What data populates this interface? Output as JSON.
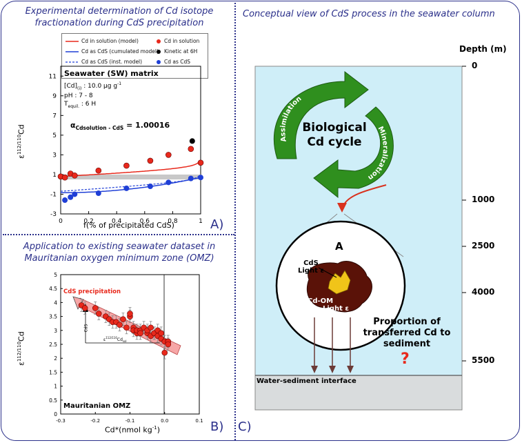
{
  "panel_a": {
    "title_line1": "Experimental determination of Cd isotope",
    "title_line2": "fractionation during CdS precipitation",
    "label": "A)",
    "legend": {
      "model_solution": "Cd in solution (model)",
      "model_cumulated": "Cd as CdS (cumulated model)",
      "model_inst": "Cd as CdS (inst. model)",
      "pt_solution": "Cd in solution",
      "pt_kinetic": "Kinetic at 6H",
      "pt_cds": "Cd as CdS"
    },
    "matrix_title": "Seawater (SW) matrix",
    "cond1": "[Cd]",
    "cond1_sub": "(i)",
    "cond1_val": " : 10.0 µg g",
    "cond1_sup": "-1",
    "cond2": "pH : 7 - 8",
    "cond3": "T",
    "cond3_sub": "equil.",
    "cond3_val": " : 6 H",
    "alpha_sym": "α",
    "alpha_sub": "Cdsolution - CdS",
    "alpha_val": " = 1.00016",
    "xlabel": "f(% of precipitated CdS)",
    "ylabel_eps": "ε",
    "ylabel_sup": "112/110",
    "ylabel_cd": "Cd",
    "colors": {
      "solution": "#e8291c",
      "cds": "#1f3fd6",
      "kinetic": "#000000"
    }
  },
  "panel_b": {
    "title_line1": "Application to existing seawater dataset in",
    "title_line2": "Mauritanian oxygen minimum zone (OMZ)",
    "label": "B)",
    "annot": "CdS precipitation",
    "annot_cds": "CdS",
    "annot_eps": "ε",
    "annot_eps_sup": "112/110",
    "annot_eps_cd": "Cd",
    "annot_eps_sub": "sol",
    "corner": "Mauritanian OMZ",
    "xlabel": "Cd*(nmol kg",
    "xlabel_sup": "-1",
    "xlabel_end": ")",
    "ylabel_eps": "ε",
    "ylabel_sup": "112/110",
    "ylabel_cd": "Cd"
  },
  "panel_c": {
    "title": "Conceptual view of CdS process in the seawater column",
    "label": "C)",
    "depth_title": "Depth (m)",
    "depth_ticks": [
      "0",
      "1000",
      "2500",
      "4000",
      "5500"
    ],
    "cycle_line1": "Biological",
    "cycle_line2": "Cd cycle",
    "arrow_assim": "Assimilation",
    "arrow_miner": "Mineralization",
    "zoom_letter": "A",
    "cds_line1": "CdS",
    "cds_line2": "Light ε",
    "cdom_line1": "Cd-OM",
    "cdom_line2": "Light ε",
    "prop_line1": "Proportion of",
    "prop_line2": "transferred Cd to",
    "prop_line3": "sediment",
    "question": "?",
    "interface": "Water-sediment interface",
    "colors": {
      "water": "#cfeef8",
      "sediment": "#d9dcdd",
      "arrow_green": "#2f8f1e",
      "particle": "#5a1208",
      "cds": "#f0c419",
      "question": "#e8291c"
    }
  },
  "chart_data": [
    {
      "type": "scatter",
      "xlabel": "f(% of precipitated CdS)",
      "ylabel": "ε112/110Cd",
      "xlim": [
        0,
        1
      ],
      "ylim": [
        -3,
        12
      ],
      "xticks": [
        "0",
        "0.2",
        "0.4",
        "0.6",
        "0.8",
        "1"
      ],
      "yticks": [
        "-3",
        "-1",
        "1",
        "3",
        "5",
        "7",
        "9",
        "11"
      ],
      "series": [
        {
          "name": "Cd in solution",
          "x": [
            0.0,
            0.03,
            0.07,
            0.1,
            0.27,
            0.47,
            0.64,
            0.77,
            0.93,
            1.0
          ],
          "y": [
            0.8,
            0.7,
            1.1,
            0.9,
            1.4,
            1.9,
            2.4,
            3.0,
            3.6,
            2.2
          ]
        },
        {
          "name": "Kinetic at 6H",
          "x": [
            0.94
          ],
          "y": [
            4.4
          ]
        },
        {
          "name": "Cd as CdS",
          "x": [
            0.03,
            0.07,
            0.1,
            0.27,
            0.47,
            0.64,
            0.77,
            0.93,
            1.0
          ],
          "y": [
            -1.6,
            -1.3,
            -1.0,
            -0.9,
            -0.4,
            -0.2,
            0.2,
            0.6,
            0.7
          ]
        }
      ],
      "band": [
        0.5,
        1.0
      ]
    },
    {
      "type": "scatter",
      "xlabel": "Cd*(nmol kg-1)",
      "ylabel": "ε112/110Cd",
      "xlim": [
        -0.3,
        0.1
      ],
      "ylim": [
        0,
        5
      ],
      "xticks": [
        "-0.3",
        "-0.2",
        "-0.1",
        "0.0",
        "0.1"
      ],
      "yticks": [
        "0",
        "0.5",
        "1",
        "1.5",
        "2",
        "2.5",
        "3",
        "3.5",
        "4",
        "4.5",
        "5"
      ],
      "series": [
        {
          "name": "",
          "x": [
            -0.24,
            -0.23,
            -0.2,
            -0.19,
            -0.17,
            -0.16,
            -0.15,
            -0.14,
            -0.13,
            -0.12,
            -0.11,
            -0.1,
            -0.1,
            -0.09,
            -0.09,
            -0.08,
            -0.08,
            -0.07,
            -0.07,
            -0.06,
            -0.05,
            -0.05,
            -0.04,
            -0.04,
            -0.03,
            -0.03,
            -0.02,
            -0.02,
            -0.01,
            -0.01,
            0.0,
            0.0,
            0.01,
            0.01
          ],
          "y": [
            3.9,
            3.8,
            3.8,
            3.6,
            3.5,
            3.4,
            3.3,
            3.3,
            3.2,
            3.4,
            3.1,
            3.5,
            3.6,
            3.1,
            3.0,
            2.9,
            3.0,
            3.0,
            2.9,
            3.1,
            2.9,
            3.0,
            2.8,
            3.1,
            2.9,
            2.9,
            2.8,
            3.0,
            2.7,
            2.9,
            2.6,
            2.2,
            2.6,
            2.5
          ]
        }
      ]
    }
  ]
}
